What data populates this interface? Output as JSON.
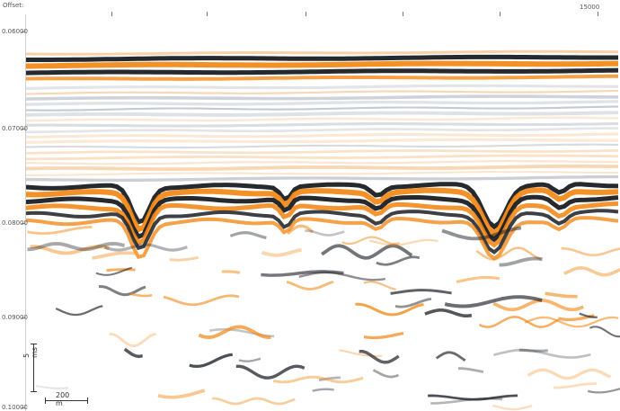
{
  "header": {
    "offset_label": "Offset:",
    "offset_end_value": "15000"
  },
  "time_axis": {
    "labels": [
      "0.06000",
      "0.07000",
      "0.08000",
      "0.09000",
      "0.10000"
    ]
  },
  "scale_bar": {
    "vertical_label": "5 ms",
    "horizontal_label": "200 m"
  },
  "colors": {
    "positive_amplitude": "#f28a1a",
    "negative_amplitude": "#1a1d23",
    "background": "#ffffff"
  }
}
